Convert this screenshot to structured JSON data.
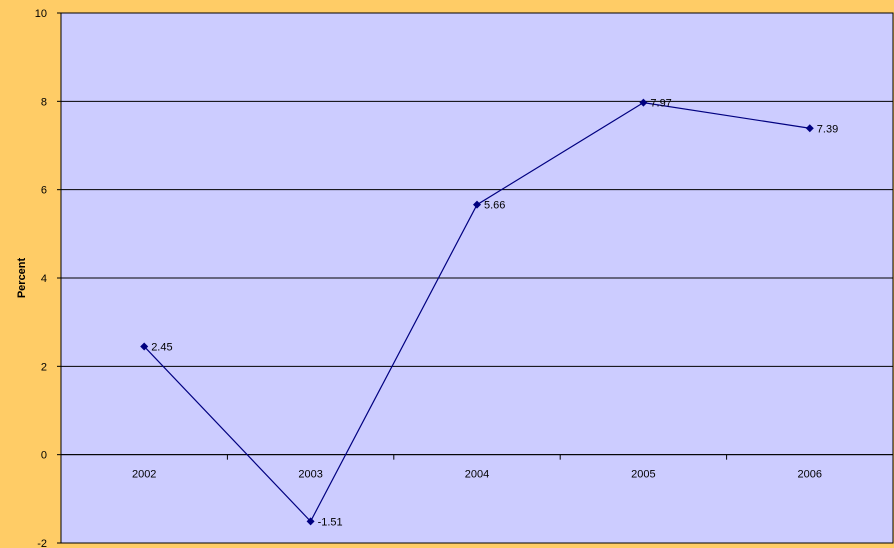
{
  "colors": {
    "background": "#FFCC66",
    "plot_area": "#CCCCFF",
    "gridline": "#000000",
    "series_line": "#000080"
  },
  "chart_data": {
    "type": "line",
    "title": "",
    "xlabel": "",
    "ylabel": "Percent",
    "categories": [
      "2002",
      "2003",
      "2004",
      "2005",
      "2006"
    ],
    "series": [
      {
        "values": [
          2.45,
          -1.51,
          5.66,
          7.97,
          7.39
        ]
      }
    ],
    "data_labels": [
      "2.45",
      "-1.51",
      "5.66",
      "7.97",
      "7.39"
    ],
    "ylim": [
      -2,
      10
    ],
    "yticks": [
      -2,
      0,
      2,
      4,
      6,
      8,
      10
    ],
    "grid": true,
    "legend": "none"
  }
}
